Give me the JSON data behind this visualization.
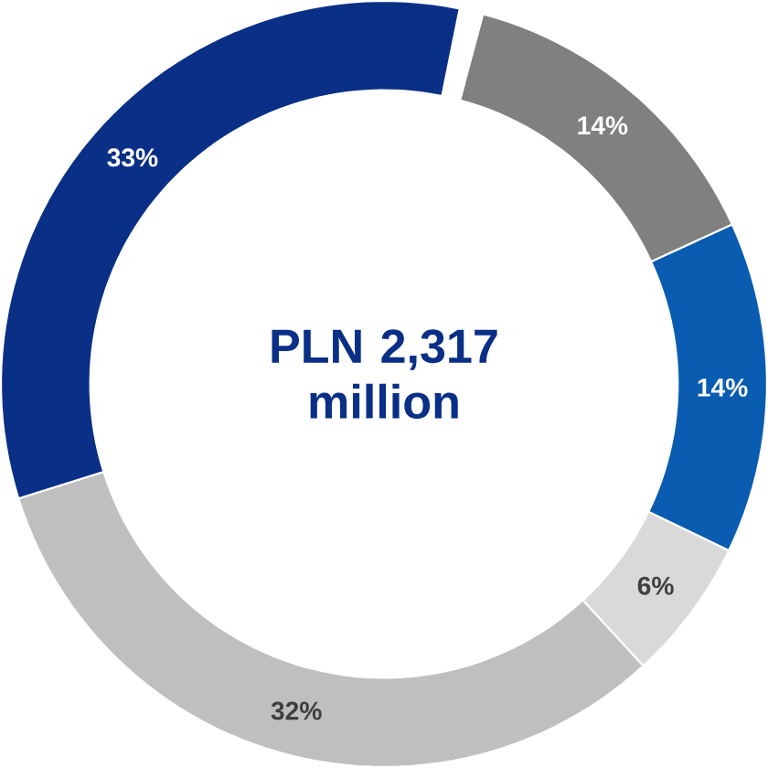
{
  "chart_data": {
    "type": "donut",
    "categories": [
      null,
      null,
      null,
      null,
      null
    ],
    "values": [
      14,
      14,
      6,
      32,
      33
    ],
    "colors": [
      "#808080",
      "#0a5cb0",
      "#d9d9d9",
      "#bfbfbf",
      "#0a2f87"
    ],
    "value_labels": [
      "14%",
      "14%",
      "6%",
      "32%",
      "33%"
    ],
    "annotations": [
      "PLN 2,317 million"
    ]
  }
}
